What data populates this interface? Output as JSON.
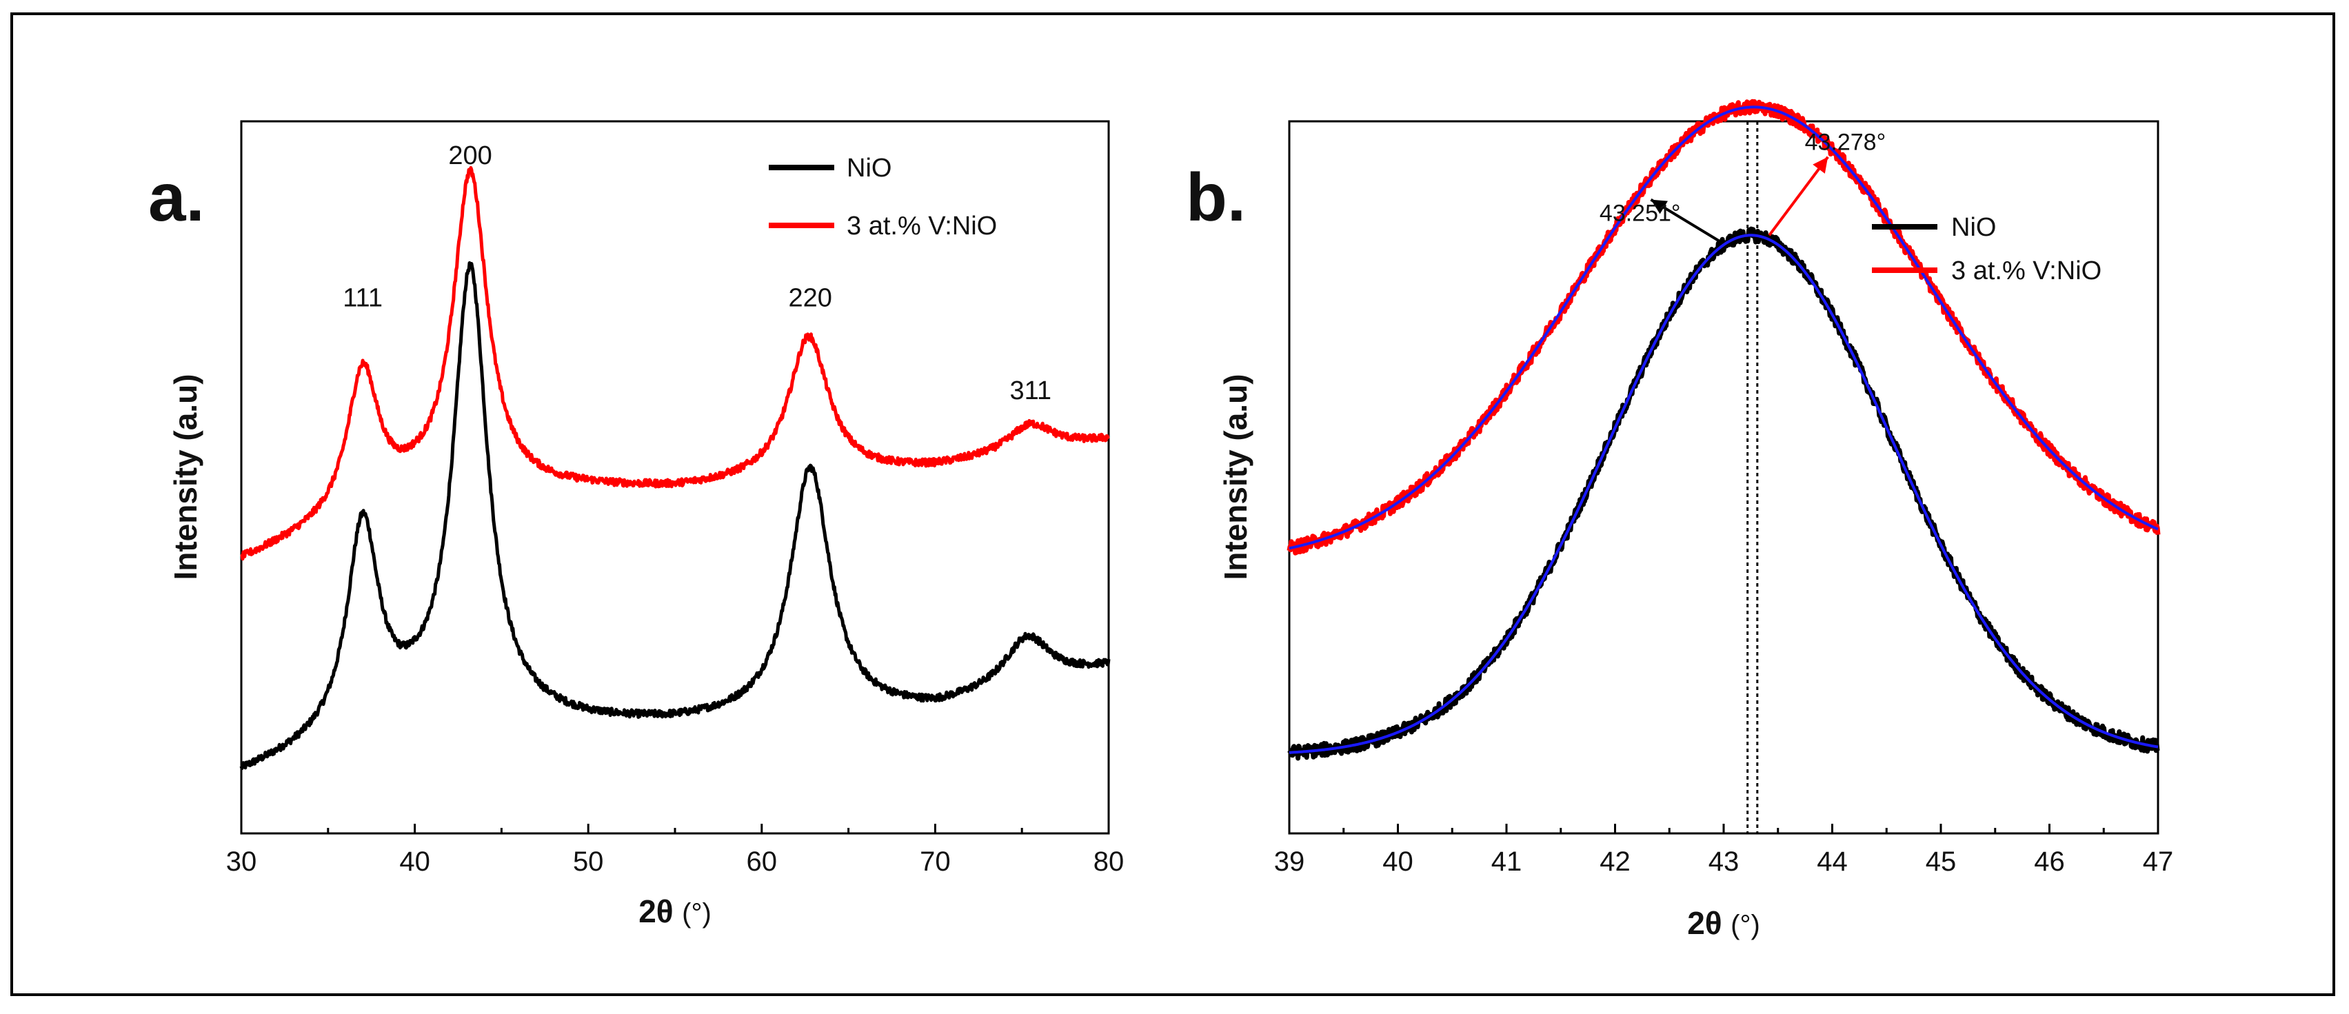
{
  "colors": {
    "nio": "#000000",
    "v_nio": "#ff0000",
    "fit": "#1a1aff",
    "frame": "#000000"
  },
  "chart_data": [
    {
      "type": "line",
      "panel_label": "a.",
      "title": "",
      "xlabel": "2θ",
      "xlabel_unit": "(°)",
      "ylabel": "Intensity (a.u)",
      "xlim": [
        30,
        80
      ],
      "ylim": [
        0,
        1
      ],
      "y_ticks_shown": false,
      "x_ticks": [
        30,
        40,
        50,
        60,
        70,
        80
      ],
      "legend_position": "top-right",
      "series": [
        {
          "name": "NiO",
          "color": "#000000",
          "baseline": [
            [
              30,
              0.08
            ],
            [
              40,
              0.16
            ],
            [
              50,
              0.15
            ],
            [
              55,
              0.15
            ],
            [
              70,
              0.17
            ],
            [
              80,
              0.23
            ]
          ],
          "peaks": [
            [
              37.0,
              0.29,
              1.1
            ],
            [
              43.2,
              0.63,
              1.2
            ],
            [
              62.8,
              0.35,
              1.4
            ],
            [
              75.3,
              0.07,
              1.6
            ]
          ],
          "noise": 0.005
        },
        {
          "name": "3 at.% V:NiO",
          "color": "#ff0000",
          "baseline": [
            [
              30,
              0.38
            ],
            [
              40,
              0.47
            ],
            [
              50,
              0.48
            ],
            [
              55,
              0.48
            ],
            [
              70,
              0.51
            ],
            [
              80,
              0.55
            ]
          ],
          "peaks": [
            [
              37.0,
              0.2,
              1.1
            ],
            [
              43.2,
              0.45,
              1.2
            ],
            [
              62.7,
              0.2,
              1.4
            ],
            [
              75.5,
              0.04,
              1.6
            ]
          ],
          "noise": 0.005
        }
      ],
      "peak_labels": [
        {
          "text": "111",
          "x": 37.0,
          "y": 0.74
        },
        {
          "text": "200",
          "x": 43.2,
          "y": 0.94
        },
        {
          "text": "220",
          "x": 62.8,
          "y": 0.74
        },
        {
          "text": "311",
          "x": 75.5,
          "y": 0.61
        }
      ]
    },
    {
      "type": "line",
      "panel_label": "b.",
      "title": "",
      "xlabel": "2θ",
      "xlabel_unit": "(°)",
      "ylabel": "Intensity (a.u)",
      "xlim": [
        39,
        47
      ],
      "ylim": [
        0,
        1
      ],
      "y_ticks_shown": false,
      "x_ticks": [
        39,
        40,
        41,
        42,
        43,
        44,
        45,
        46,
        47
      ],
      "legend_position": "top-right",
      "series": [
        {
          "name": "NiO",
          "color": "#000000",
          "center": 43.251,
          "amplitude": 0.73,
          "sigma": 1.3,
          "offset": 0.11,
          "noise": 0.009
        },
        {
          "name": "3 at.% V:NiO",
          "color": "#ff0000",
          "center": 43.278,
          "amplitude": 0.64,
          "sigma": 1.63,
          "offset": 0.38,
          "noise": 0.009
        }
      ],
      "fit_color": "#1a1aff",
      "reference_lines": [
        43.22,
        43.31
      ],
      "annotations": [
        {
          "text": "43.251°",
          "color": "#000000",
          "x": 42.23,
          "y": 0.86,
          "arrow_from": [
            42.98,
            0.83
          ],
          "arrow_to": [
            42.33,
            0.89
          ]
        },
        {
          "text": "43.278°",
          "color": "#ff0000",
          "x": 44.12,
          "y": 0.96,
          "arrow_from": [
            43.42,
            0.84
          ],
          "arrow_to": [
            43.96,
            0.95
          ]
        }
      ]
    }
  ]
}
